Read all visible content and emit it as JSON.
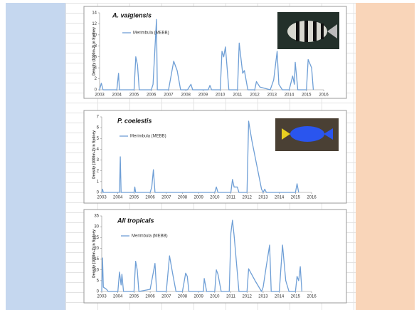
{
  "chart_data": [
    {
      "type": "line",
      "title": "A. vaigiensis",
      "y_label": "Density (1000m-2) in Sydney",
      "x": [
        2003.0,
        2003.1,
        2003.2,
        2004.0,
        2004.1,
        2004.15,
        2005.0,
        2005.1,
        2005.2,
        2005.3,
        2006.0,
        2006.1,
        2006.3,
        2006.35,
        2007.0,
        2007.3,
        2007.5,
        2007.7,
        2008.1,
        2008.3,
        2008.4,
        2009.3,
        2009.4,
        2009.5,
        2010.0,
        2010.1,
        2010.2,
        2010.3,
        2010.5,
        2011.0,
        2011.1,
        2011.3,
        2011.4,
        2011.6,
        2012.0,
        2012.1,
        2012.3,
        2012.9,
        2013.1,
        2013.3,
        2013.4,
        2013.6,
        2014.0,
        2014.2,
        2014.3,
        2014.35,
        2014.5,
        2015.0,
        2015.1,
        2015.3,
        2015.4
      ],
      "series": [
        {
          "name": "Merimbula (MEBB)",
          "color": "#6f9fd6",
          "values": [
            0,
            1.2,
            0,
            0,
            3,
            0,
            0,
            6,
            4.5,
            0,
            0,
            1,
            12.8,
            0,
            0,
            5.2,
            3.5,
            0,
            0,
            1,
            0,
            0,
            0.8,
            0,
            0,
            7,
            6,
            7.8,
            0,
            0,
            8.5,
            3,
            3.5,
            0,
            0,
            1.5,
            0.5,
            0,
            1.8,
            7,
            1,
            0,
            0,
            2.5,
            1,
            5,
            0,
            0,
            5.5,
            4,
            0
          ]
        }
      ],
      "xlim": [
        2003,
        2016
      ],
      "xticks": [
        2003,
        2004,
        2005,
        2006,
        2007,
        2008,
        2009,
        2010,
        2011,
        2012,
        2013,
        2014,
        2015,
        2016
      ],
      "ylim": [
        0,
        14
      ],
      "yticks": [
        0,
        2,
        4,
        6,
        8,
        10,
        12,
        14
      ]
    },
    {
      "type": "line",
      "title": "P. coelestis",
      "y_label": "Density (1000m-2) in Sydney",
      "x": [
        2003.0,
        2003.05,
        2003.1,
        2004.1,
        2004.15,
        2004.2,
        2005.0,
        2005.05,
        2005.1,
        2006.0,
        2006.1,
        2006.2,
        2006.3,
        2010.0,
        2010.1,
        2010.2,
        2011.0,
        2011.1,
        2011.2,
        2011.4,
        2011.5,
        2012.0,
        2012.1,
        2012.3,
        2012.9,
        2013.0,
        2013.1,
        2013.2,
        2015.0,
        2015.1,
        2015.2
      ],
      "series": [
        {
          "name": "Merimbula (MEBB)",
          "color": "#6f9fd6",
          "values": [
            0,
            0.3,
            0,
            0,
            3.3,
            0,
            0,
            0.5,
            0,
            0,
            0.5,
            2.1,
            0,
            0,
            0.5,
            0,
            0,
            1.2,
            0.5,
            0.5,
            0,
            0,
            6.6,
            4.8,
            0.3,
            0,
            0.3,
            0,
            0,
            0.8,
            0
          ]
        }
      ],
      "xlim": [
        2003,
        2016
      ],
      "xticks": [
        2003,
        2004,
        2005,
        2006,
        2007,
        2008,
        2009,
        2010,
        2011,
        2012,
        2013,
        2014,
        2015,
        2016
      ],
      "ylim": [
        0,
        7
      ],
      "yticks": [
        0,
        1,
        2,
        3,
        4,
        5,
        6,
        7
      ]
    },
    {
      "type": "line",
      "title": "All tropicals",
      "y_label": "Density (1000m-2) in Sydney",
      "x": [
        2003.0,
        2003.05,
        2003.1,
        2003.3,
        2003.4,
        2004.0,
        2004.1,
        2004.2,
        2004.25,
        2004.35,
        2005.0,
        2005.1,
        2005.2,
        2005.3,
        2006.0,
        2006.2,
        2006.3,
        2006.4,
        2007.0,
        2007.2,
        2007.4,
        2007.6,
        2008.0,
        2008.2,
        2008.3,
        2008.4,
        2009.3,
        2009.35,
        2009.5,
        2010.0,
        2010.1,
        2010.2,
        2010.4,
        2010.9,
        2011.0,
        2011.1,
        2011.2,
        2011.5,
        2012.0,
        2012.1,
        2012.5,
        2012.9,
        2013.0,
        2013.2,
        2013.4,
        2013.5,
        2014.0,
        2014.2,
        2014.4,
        2014.6,
        2015.0,
        2015.1,
        2015.2,
        2015.3,
        2015.4
      ],
      "series": [
        {
          "name": "Merimbula (MEBB)",
          "color": "#6f9fd6",
          "values": [
            0,
            15.5,
            2,
            1,
            0,
            0,
            9,
            3,
            8,
            0,
            0,
            14,
            10,
            0,
            1,
            9,
            13,
            0,
            0,
            16.5,
            8,
            0,
            0,
            8.5,
            7,
            0,
            0,
            6,
            0,
            0,
            10,
            8,
            0,
            0,
            27,
            33,
            26,
            0,
            0,
            10.5,
            5,
            0,
            2,
            12,
            21.5,
            0,
            0,
            21.5,
            5,
            0,
            0,
            7,
            5,
            11.5,
            0
          ]
        }
      ],
      "xlim": [
        2003,
        2016
      ],
      "xticks": [
        2003,
        2004,
        2005,
        2006,
        2007,
        2008,
        2009,
        2010,
        2011,
        2012,
        2013,
        2014,
        2015,
        2016
      ],
      "ylim": [
        0,
        35
      ],
      "yticks": [
        0,
        5,
        10,
        15,
        20,
        25,
        30,
        35
      ]
    }
  ]
}
